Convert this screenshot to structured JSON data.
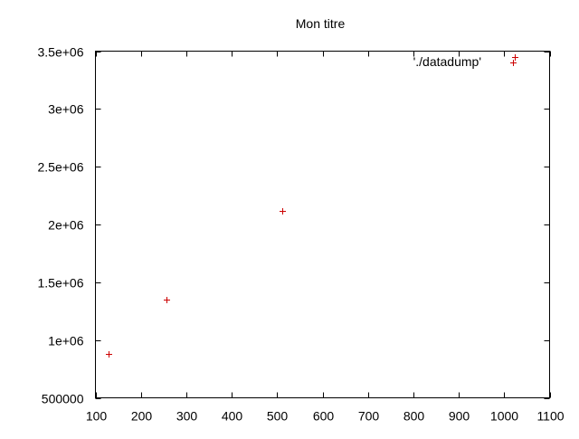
{
  "chart_data": {
    "type": "scatter",
    "title": "Mon titre",
    "xlabel": "",
    "ylabel": "",
    "xlim": [
      100,
      1100
    ],
    "ylim": [
      500000,
      3500000
    ],
    "x_ticks": [
      100,
      200,
      300,
      400,
      500,
      600,
      700,
      800,
      900,
      1000,
      1100
    ],
    "x_tick_labels": [
      "100",
      "200",
      "300",
      "400",
      "500",
      "600",
      "700",
      "800",
      "900",
      "1000",
      "1100"
    ],
    "y_ticks": [
      500000,
      1000000,
      1500000,
      2000000,
      2500000,
      3000000,
      3500000
    ],
    "y_tick_labels": [
      "500000",
      "1e+06",
      "1.5e+06",
      "2e+06",
      "2.5e+06",
      "3e+06",
      "3.5e+06"
    ],
    "grid": false,
    "legend_position": "top-right",
    "series": [
      {
        "name": "'./datadump'",
        "marker": "plus",
        "color": "#cc0000",
        "x": [
          128,
          256,
          512,
          1024
        ],
        "y": [
          880000,
          1350000,
          2120000,
          3450000
        ]
      }
    ]
  }
}
